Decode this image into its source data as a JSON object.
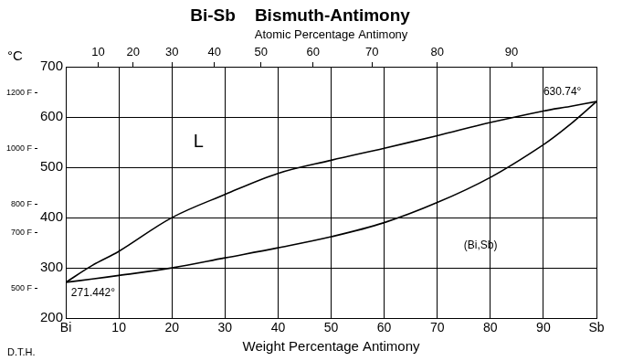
{
  "chart_data": {
    "type": "line",
    "title": "Bi-Sb    Bismuth-Antimony",
    "x_label": "Weight Percentage Antimony",
    "x2_label": "Atomic Percentage Antimony",
    "y_label": "°C",
    "credit": "D.T.H.",
    "x": [
      0,
      5,
      10,
      20,
      30,
      40,
      50,
      60,
      70,
      80,
      90,
      95,
      100
    ],
    "series": [
      {
        "color": "#000000",
        "values": [
          271.442,
          305,
          333,
          400,
          446,
          488,
          514,
          538,
          563,
          589,
          612,
          621,
          630.74
        ]
      },
      {
        "color": "#000000",
        "values": [
          271.442,
          278,
          285,
          300,
          320,
          340,
          362,
          390,
          430,
          480,
          545,
          585,
          630.74
        ]
      }
    ],
    "xlim": [
      0,
      100
    ],
    "xticks": [
      {
        "value": 0,
        "label": "Bi"
      },
      10,
      20,
      30,
      40,
      50,
      60,
      70,
      80,
      90,
      {
        "value": 100,
        "label": "Sb"
      }
    ],
    "x2lim": [
      0,
      100
    ],
    "x2ticks": [
      {
        "value": 6.1,
        "label": "10"
      },
      {
        "value": 12.7,
        "label": "20"
      },
      {
        "value": 20.0,
        "label": "30"
      },
      {
        "value": 28.0,
        "label": "40"
      },
      {
        "value": 36.8,
        "label": "50"
      },
      {
        "value": 46.6,
        "label": "60"
      },
      {
        "value": 57.7,
        "label": "70"
      },
      {
        "value": 70.0,
        "label": "80"
      },
      {
        "value": 84.0,
        "label": "90"
      }
    ],
    "ylim": [
      200,
      700
    ],
    "yticks": [
      200,
      300,
      400,
      500,
      600,
      700
    ],
    "y2lim": [
      200,
      700
    ],
    "y2ticks": [
      {
        "value": 260,
        "label": "500 F"
      },
      {
        "value": 371.1,
        "label": "700 F"
      },
      {
        "value": 426.7,
        "label": "800 F"
      },
      {
        "value": 537.8,
        "label": "1000 F"
      },
      {
        "value": 648.9,
        "label": "1200 F"
      }
    ],
    "annotations": [
      {
        "text": "L",
        "x": 25,
        "y": 550
      },
      {
        "text": "(Bi,Sb)",
        "x": 75,
        "y": 345
      },
      {
        "text": "271.442°",
        "x": 1,
        "y": 250
      },
      {
        "text": "630.74°",
        "x": 90,
        "y": 650
      }
    ],
    "grid": true,
    "line_style": "solid"
  }
}
